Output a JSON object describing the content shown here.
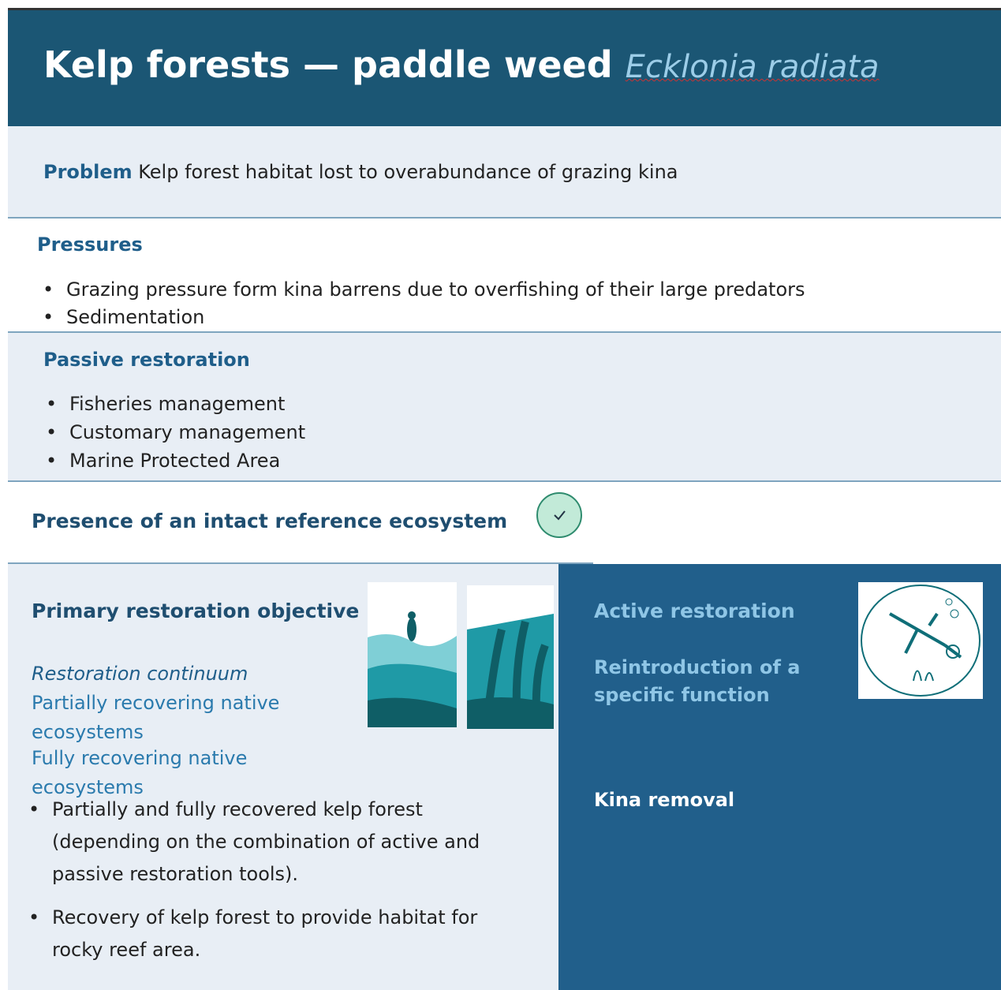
{
  "header": {
    "title": "Kelp forests — paddle weed",
    "species": "Ecklonia radiata"
  },
  "problem": {
    "label": "Problem",
    "text": "Kelp forest habitat lost to overabundance of grazing kina"
  },
  "pressures": {
    "heading": "Pressures",
    "items": [
      "Grazing pressure form kina barrens due to overfishing of their large predators",
      "Sedimentation"
    ]
  },
  "passive": {
    "heading": "Passive restoration",
    "items": [
      "Fisheries management",
      "Customary management",
      "Marine Protected Area"
    ]
  },
  "reference": {
    "text": "Presence of an intact reference ecosystem"
  },
  "objective": {
    "heading": "Primary restoration objective",
    "continuum_label": "Restoration continuum",
    "continuum": [
      "Partially recovering native ecosystems",
      "Fully recovering native ecosystems"
    ],
    "items": [
      "Partially and fully recovered kelp forest (depending on the combination of active and passive restoration tools).",
      "Recovery of kelp forest to provide habitat for rocky reef area."
    ]
  },
  "active": {
    "heading": "Active restoration",
    "subheading": "Reintroduction of a specific function",
    "action": "Kina removal"
  }
}
